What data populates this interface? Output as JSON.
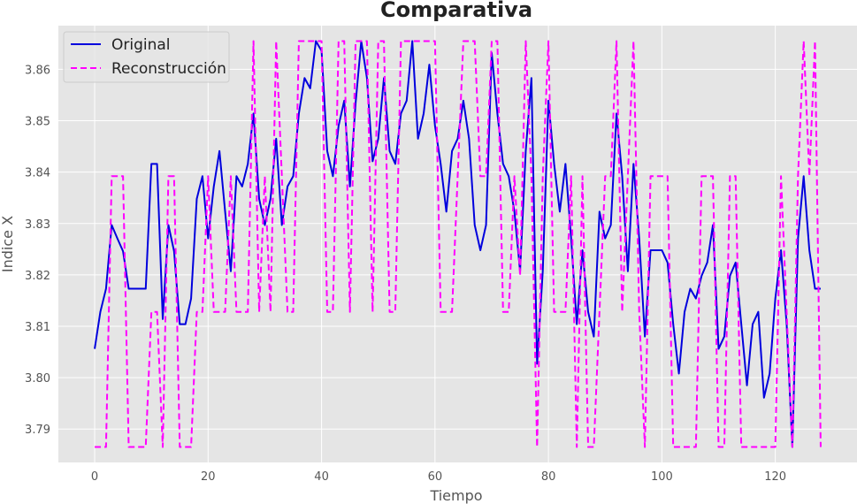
{
  "chart_data": {
    "type": "line",
    "title": "Comparativa",
    "xlabel": "Tiempo",
    "ylabel": "Indice X",
    "xlim": [
      -6.4,
      134.4
    ],
    "ylim": [
      3.7835,
      3.8685
    ],
    "xticks": [
      0,
      20,
      40,
      60,
      80,
      100,
      120
    ],
    "xtick_labels": [
      "0",
      "20",
      "40",
      "60",
      "80",
      "100",
      "120"
    ],
    "yticks": [
      3.79,
      3.8,
      3.81,
      3.82,
      3.83,
      3.84,
      3.85,
      3.86
    ],
    "ytick_labels": [
      "3.79",
      "3.80",
      "3.81",
      "3.82",
      "3.83",
      "3.84",
      "3.85",
      "3.86"
    ],
    "grid": true,
    "legend_position": "top-left",
    "series": [
      {
        "name": "Original",
        "color": "#0000dd",
        "style": "solid",
        "x": [
          0,
          1,
          2,
          3,
          4,
          5,
          6,
          7,
          8,
          9,
          10,
          11,
          12,
          13,
          14,
          15,
          16,
          17,
          18,
          19,
          20,
          21,
          22,
          23,
          24,
          25,
          26,
          27,
          28,
          29,
          30,
          31,
          32,
          33,
          34,
          35,
          36,
          37,
          38,
          39,
          40,
          41,
          42,
          43,
          44,
          45,
          46,
          47,
          48,
          49,
          50,
          51,
          52,
          53,
          54,
          55,
          56,
          57,
          58,
          59,
          60,
          61,
          62,
          63,
          64,
          65,
          66,
          67,
          68,
          69,
          70,
          71,
          72,
          73,
          74,
          75,
          76,
          77,
          78,
          79,
          80,
          81,
          82,
          83,
          84,
          85,
          86,
          87,
          88,
          89,
          90,
          91,
          92,
          93,
          94,
          95,
          96,
          97,
          98,
          99,
          100,
          101,
          102,
          103,
          104,
          105,
          106,
          107,
          108,
          109,
          110,
          111,
          112,
          113,
          114,
          115,
          116,
          117,
          118,
          119,
          120,
          121,
          122,
          123,
          124,
          125,
          126,
          127,
          128
        ],
        "y": [
          3.8056,
          3.8128,
          3.8173,
          3.8297,
          3.8271,
          3.8246,
          3.8173,
          3.8173,
          3.8173,
          3.8173,
          3.8416,
          3.8416,
          3.8114,
          3.8297,
          3.8246,
          3.8104,
          3.8104,
          3.8154,
          3.8348,
          3.8392,
          3.8271,
          3.8372,
          3.8441,
          3.8323,
          3.8207,
          3.8392,
          3.8372,
          3.8416,
          3.8514,
          3.8348,
          3.8297,
          3.8348,
          3.8465,
          3.8297,
          3.8372,
          3.8392,
          3.8514,
          3.8583,
          3.8563,
          3.8655,
          3.8636,
          3.8441,
          3.8392,
          3.849,
          3.8539,
          3.8372,
          3.8534,
          3.8655,
          3.8583,
          3.8421,
          3.8465,
          3.8583,
          3.8441,
          3.8416,
          3.8514,
          3.8539,
          3.8655,
          3.8465,
          3.8514,
          3.8609,
          3.849,
          3.8416,
          3.8323,
          3.8441,
          3.8465,
          3.8539,
          3.8465,
          3.8297,
          3.8248,
          3.8297,
          3.8632,
          3.8514,
          3.8416,
          3.8392,
          3.8323,
          3.8207,
          3.8441,
          3.8583,
          3.8027,
          3.8207,
          3.8539,
          3.8416,
          3.8323,
          3.8416,
          3.8271,
          3.8104,
          3.8248,
          3.8128,
          3.808,
          3.8323,
          3.8271,
          3.8297,
          3.8514,
          3.8392,
          3.8207,
          3.8416,
          3.8271,
          3.808,
          3.8248,
          3.8248,
          3.8248,
          3.8224,
          3.8104,
          3.8008,
          3.8128,
          3.8173,
          3.8154,
          3.8198,
          3.8224,
          3.8297,
          3.8056,
          3.808,
          3.8198,
          3.8224,
          3.8104,
          3.7985,
          3.8104,
          3.8128,
          3.7961,
          3.8008,
          3.8154,
          3.8248,
          3.8104,
          3.7865,
          3.8271,
          3.8392,
          3.8248,
          3.8173,
          3.8173
        ]
      },
      {
        "name": "Reconstrucción",
        "color": "#ff00ff",
        "style": "dashed",
        "x": [
          0,
          1,
          2,
          3,
          4,
          5,
          6,
          7,
          8,
          9,
          10,
          11,
          12,
          13,
          14,
          15,
          16,
          17,
          18,
          19,
          20,
          21,
          22,
          23,
          24,
          25,
          26,
          27,
          28,
          29,
          30,
          31,
          32,
          33,
          34,
          35,
          36,
          37,
          38,
          39,
          40,
          41,
          42,
          43,
          44,
          45,
          46,
          47,
          48,
          49,
          50,
          51,
          52,
          53,
          54,
          55,
          56,
          57,
          58,
          59,
          60,
          61,
          62,
          63,
          64,
          65,
          66,
          67,
          68,
          69,
          70,
          71,
          72,
          73,
          74,
          75,
          76,
          77,
          78,
          79,
          80,
          81,
          82,
          83,
          84,
          85,
          86,
          87,
          88,
          89,
          90,
          91,
          92,
          93,
          94,
          95,
          96,
          97,
          98,
          99,
          100,
          101,
          102,
          103,
          104,
          105,
          106,
          107,
          108,
          109,
          110,
          111,
          112,
          113,
          114,
          115,
          116,
          117,
          118,
          119,
          120,
          121,
          122,
          123,
          124,
          125,
          126,
          127,
          128
        ],
        "y": [
          3.7865,
          3.7865,
          3.7865,
          3.8392,
          3.8392,
          3.8392,
          3.7865,
          3.7865,
          3.7865,
          3.7865,
          3.8128,
          3.8128,
          3.7865,
          3.8392,
          3.8392,
          3.7865,
          3.7865,
          3.7865,
          3.8128,
          3.8128,
          3.8392,
          3.8128,
          3.8128,
          3.8128,
          3.8392,
          3.8128,
          3.8128,
          3.8128,
          3.8655,
          3.8128,
          3.8392,
          3.8128,
          3.8655,
          3.8392,
          3.8128,
          3.8128,
          3.8655,
          3.8655,
          3.8655,
          3.8655,
          3.8655,
          3.8128,
          3.8128,
          3.8655,
          3.8655,
          3.8128,
          3.8655,
          3.8655,
          3.8655,
          3.8128,
          3.8655,
          3.8655,
          3.8128,
          3.8128,
          3.8655,
          3.8655,
          3.8655,
          3.8655,
          3.8655,
          3.8655,
          3.8655,
          3.8128,
          3.8128,
          3.8128,
          3.8392,
          3.8655,
          3.8655,
          3.8655,
          3.8392,
          3.8392,
          3.8655,
          3.8655,
          3.8128,
          3.8128,
          3.8392,
          3.8198,
          3.8655,
          3.8392,
          3.7865,
          3.8392,
          3.8655,
          3.8128,
          3.8128,
          3.8128,
          3.8392,
          3.7865,
          3.8392,
          3.7865,
          3.7865,
          3.8128,
          3.8392,
          3.8392,
          3.8655,
          3.8128,
          3.8392,
          3.8655,
          3.8128,
          3.7865,
          3.8392,
          3.8392,
          3.8392,
          3.8392,
          3.7865,
          3.7865,
          3.7865,
          3.7865,
          3.7865,
          3.8392,
          3.8392,
          3.8392,
          3.7865,
          3.7865,
          3.8392,
          3.8392,
          3.7865,
          3.7865,
          3.7865,
          3.7865,
          3.7865,
          3.7865,
          3.7865,
          3.8392,
          3.8128,
          3.7865,
          3.8392,
          3.8655,
          3.8392,
          3.8655,
          3.7865
        ]
      }
    ]
  }
}
